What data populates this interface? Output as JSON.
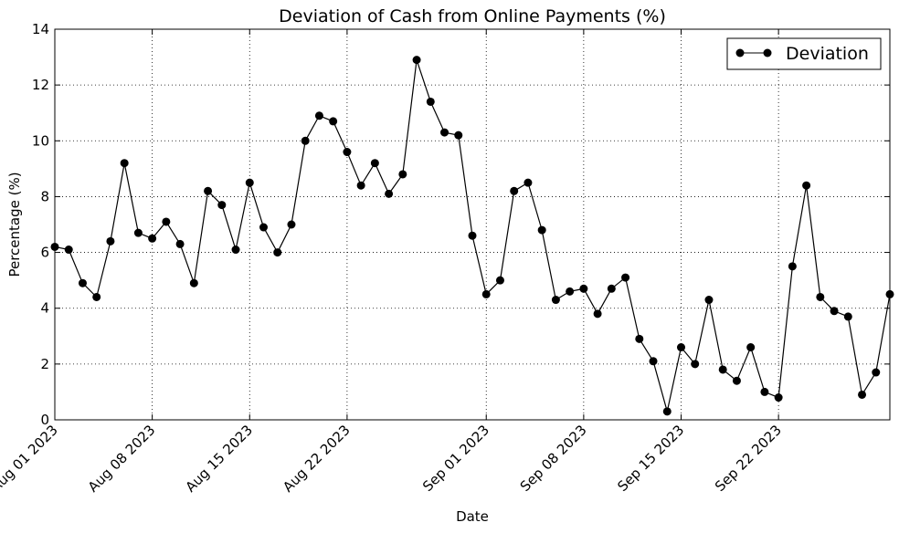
{
  "chart_data": {
    "type": "line",
    "title": "Deviation of Cash from Online Payments (%)",
    "xlabel": "Date",
    "ylabel": "Percentage (%)",
    "ylim": [
      0,
      14
    ],
    "xlim": [
      "2023-08-01",
      "2023-09-30"
    ],
    "yticks": [
      0,
      2,
      4,
      6,
      8,
      10,
      12,
      14
    ],
    "xticks": [
      {
        "date": "2023-08-01",
        "label": "Aug 01 2023"
      },
      {
        "date": "2023-08-08",
        "label": "Aug 08 2023"
      },
      {
        "date": "2023-08-15",
        "label": "Aug 15 2023"
      },
      {
        "date": "2023-08-22",
        "label": "Aug 22 2023"
      },
      {
        "date": "2023-09-01",
        "label": "Sep 01 2023"
      },
      {
        "date": "2023-09-08",
        "label": "Sep 08 2023"
      },
      {
        "date": "2023-09-15",
        "label": "Sep 15 2023"
      },
      {
        "date": "2023-09-22",
        "label": "Sep 22 2023"
      }
    ],
    "grid": true,
    "legend_position": "top-right",
    "series": [
      {
        "name": "Deviation",
        "color": "#000000",
        "marker": "circle",
        "x": [
          "2023-08-01",
          "2023-08-02",
          "2023-08-03",
          "2023-08-04",
          "2023-08-05",
          "2023-08-06",
          "2023-08-07",
          "2023-08-08",
          "2023-08-09",
          "2023-08-10",
          "2023-08-11",
          "2023-08-12",
          "2023-08-13",
          "2023-08-14",
          "2023-08-15",
          "2023-08-16",
          "2023-08-17",
          "2023-08-18",
          "2023-08-19",
          "2023-08-20",
          "2023-08-21",
          "2023-08-22",
          "2023-08-23",
          "2023-08-24",
          "2023-08-25",
          "2023-08-26",
          "2023-08-27",
          "2023-08-28",
          "2023-08-29",
          "2023-08-30",
          "2023-08-31",
          "2023-09-01",
          "2023-09-02",
          "2023-09-03",
          "2023-09-04",
          "2023-09-05",
          "2023-09-06",
          "2023-09-07",
          "2023-09-08",
          "2023-09-09",
          "2023-09-10",
          "2023-09-11",
          "2023-09-12",
          "2023-09-13",
          "2023-09-14",
          "2023-09-15",
          "2023-09-16",
          "2023-09-17",
          "2023-09-18",
          "2023-09-19",
          "2023-09-20",
          "2023-09-21",
          "2023-09-22",
          "2023-09-23",
          "2023-09-24",
          "2023-09-25",
          "2023-09-26",
          "2023-09-27",
          "2023-09-28",
          "2023-09-29",
          "2023-09-30"
        ],
        "y": [
          6.2,
          6.1,
          4.9,
          4.4,
          6.4,
          9.2,
          6.7,
          6.5,
          7.1,
          6.3,
          4.9,
          8.2,
          7.7,
          6.1,
          8.5,
          6.9,
          6.0,
          7.0,
          10.0,
          10.9,
          10.7,
          9.6,
          8.4,
          9.2,
          8.1,
          8.8,
          12.9,
          11.4,
          10.3,
          10.2,
          6.6,
          4.5,
          5.0,
          8.2,
          8.5,
          6.8,
          4.3,
          4.6,
          4.7,
          3.8,
          4.7,
          5.1,
          2.9,
          2.1,
          0.3,
          2.6,
          2.0,
          4.3,
          1.8,
          1.4,
          2.6,
          1.0,
          0.8,
          5.5,
          8.4,
          4.4,
          3.9,
          3.7,
          0.9,
          1.7,
          4.5
        ]
      }
    ]
  }
}
